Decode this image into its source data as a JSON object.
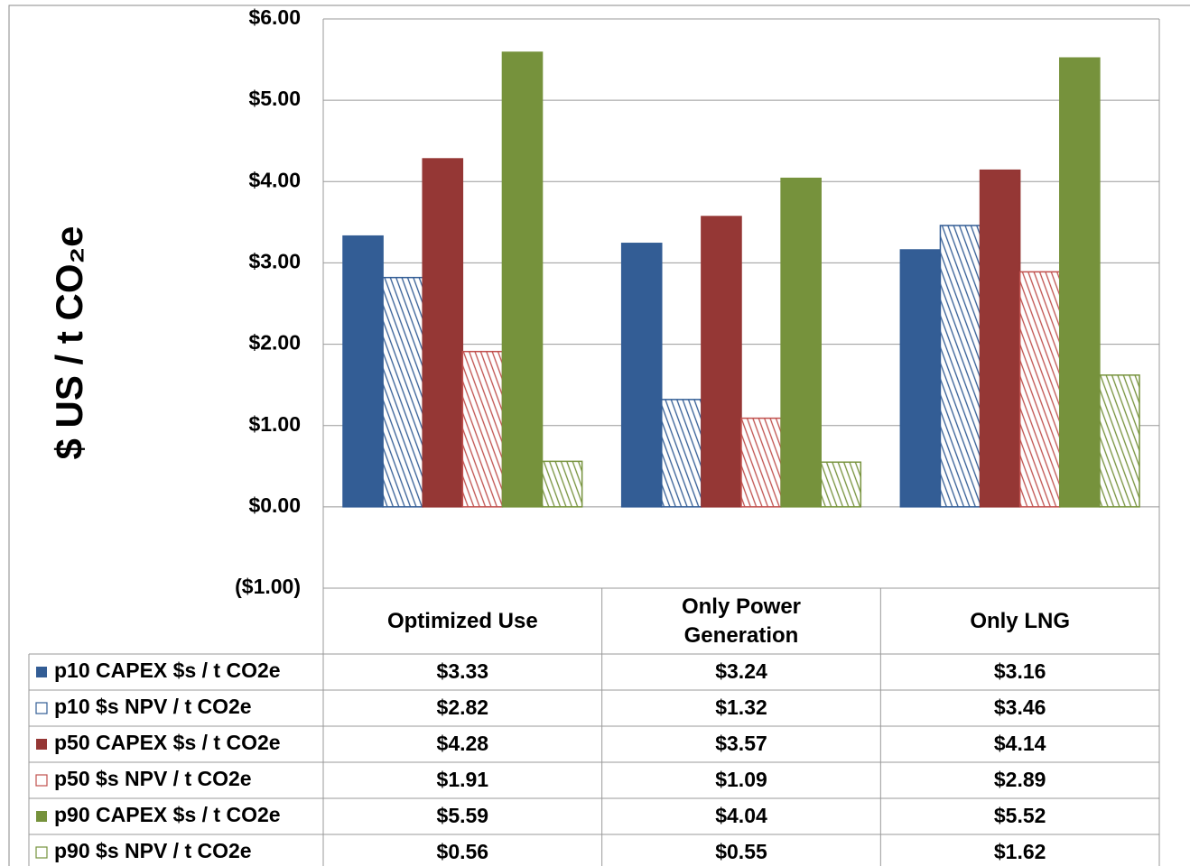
{
  "chart_data": {
    "type": "bar",
    "y_axis_label": "$ US / t CO₂e",
    "categories": [
      "Optimized Use",
      "Only Power Generation",
      "Only LNG"
    ],
    "ylim": [
      -1,
      6
    ],
    "yticks": [
      {
        "value": -1,
        "label": "($1.00)"
      },
      {
        "value": 0,
        "label": "$0.00"
      },
      {
        "value": 1,
        "label": "$1.00"
      },
      {
        "value": 2,
        "label": "$2.00"
      },
      {
        "value": 3,
        "label": "$3.00"
      },
      {
        "value": 4,
        "label": "$4.00"
      },
      {
        "value": 5,
        "label": "$5.00"
      },
      {
        "value": 6,
        "label": "$6.00"
      }
    ],
    "grid": true,
    "series": [
      {
        "name": "p10 CAPEX $s / t CO2e",
        "color": "#335d95",
        "pattern": "solid",
        "values": [
          3.33,
          3.24,
          3.16
        ],
        "value_labels": [
          "$3.33",
          "$3.24",
          "$3.16"
        ]
      },
      {
        "name": "p10 $s NPV / t CO2e",
        "color": "#335d95",
        "pattern": "hatch",
        "values": [
          2.82,
          1.32,
          3.46
        ],
        "value_labels": [
          "$2.82",
          "$1.32",
          "$3.46"
        ]
      },
      {
        "name": "p50 CAPEX $s / t CO2e",
        "color": "#953735",
        "pattern": "solid",
        "values": [
          4.28,
          3.57,
          4.14
        ],
        "value_labels": [
          "$4.28",
          "$3.57",
          "$4.14"
        ]
      },
      {
        "name": "p50 $s NPV / t CO2e",
        "color": "#c0504d",
        "pattern": "hatch",
        "values": [
          1.91,
          1.09,
          2.89
        ],
        "value_labels": [
          "$1.91",
          "$1.09",
          "$2.89"
        ]
      },
      {
        "name": "p90 CAPEX $s / t CO2e",
        "color": "#76923c",
        "pattern": "solid",
        "values": [
          5.59,
          4.04,
          5.52
        ],
        "value_labels": [
          "$5.59",
          "$4.04",
          "$5.52"
        ]
      },
      {
        "name": "p90 $s NPV / t CO2e",
        "color": "#76923c",
        "pattern": "hatch",
        "values": [
          0.56,
          0.55,
          1.62
        ],
        "value_labels": [
          "$0.56",
          "$0.55",
          "$1.62"
        ]
      }
    ]
  }
}
